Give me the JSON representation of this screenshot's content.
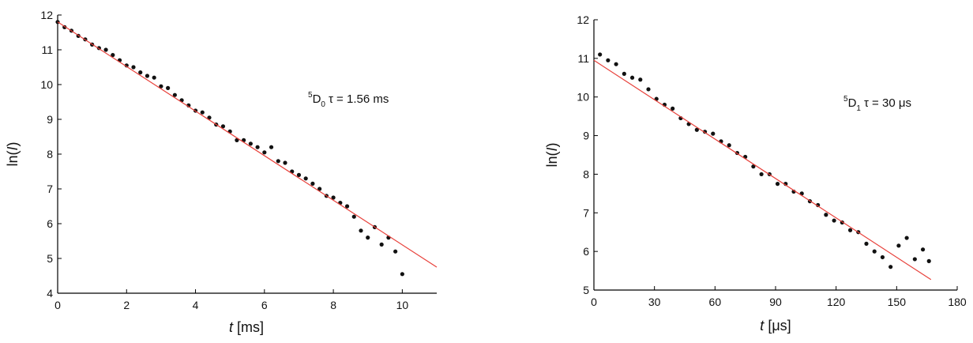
{
  "chart_data": [
    {
      "type": "scatter",
      "x_label": {
        "italic": "t",
        "text": "[ms]"
      },
      "y_label": {
        "prefix": "ln(",
        "italic": "I",
        "suffix": ")"
      },
      "annotation": {
        "sup": "5",
        "main": "D",
        "sub": "0",
        "text": "τ = 1.56 ms"
      },
      "xlim": [
        0,
        11
      ],
      "xticks": [
        0,
        2,
        4,
        6,
        8,
        10
      ],
      "ylim": [
        4,
        12
      ],
      "yticks": [
        4,
        5,
        6,
        7,
        8,
        9,
        10,
        11,
        12
      ],
      "points": {
        "color": "#111111",
        "x": [
          0,
          0.2,
          0.4,
          0.6,
          0.8,
          1.0,
          1.2,
          1.4,
          1.6,
          1.8,
          2.0,
          2.2,
          2.4,
          2.6,
          2.8,
          3.0,
          3.2,
          3.4,
          3.6,
          3.8,
          4.0,
          4.2,
          4.4,
          4.6,
          4.8,
          5.0,
          5.2,
          5.4,
          5.6,
          5.8,
          6.0,
          6.2,
          6.4,
          6.6,
          6.8,
          7.0,
          7.2,
          7.4,
          7.6,
          7.8,
          8.0,
          8.2,
          8.4,
          8.6,
          8.8,
          9.0,
          9.2,
          9.4,
          9.6,
          9.8,
          10.0
        ],
        "values": [
          11.8,
          11.65,
          11.55,
          11.4,
          11.3,
          11.15,
          11.05,
          11.0,
          10.85,
          10.7,
          10.55,
          10.5,
          10.35,
          10.25,
          10.2,
          9.95,
          9.9,
          9.7,
          9.55,
          9.4,
          9.25,
          9.2,
          9.05,
          8.85,
          8.8,
          8.65,
          8.4,
          8.4,
          8.3,
          8.2,
          8.05,
          8.2,
          7.8,
          7.75,
          7.5,
          7.4,
          7.3,
          7.15,
          7.0,
          6.8,
          6.75,
          6.6,
          6.5,
          6.2,
          5.8,
          5.6,
          5.9,
          5.4,
          5.6,
          5.2,
          4.55
        ]
      },
      "fit": {
        "color": "#e8403a",
        "x": [
          0,
          11
        ],
        "values": [
          11.8,
          4.75
        ]
      }
    },
    {
      "type": "scatter",
      "x_label": {
        "italic": "t",
        "text": "[μs]"
      },
      "y_label": {
        "prefix": "ln(",
        "italic": "I",
        "suffix": ")"
      },
      "annotation": {
        "sup": "5",
        "main": "D",
        "sub": "1",
        "text": "τ = 30 μs"
      },
      "xlim": [
        0,
        180
      ],
      "xticks": [
        0,
        30,
        60,
        90,
        120,
        150,
        180
      ],
      "ylim": [
        5,
        12
      ],
      "yticks": [
        5,
        6,
        7,
        8,
        9,
        10,
        11,
        12
      ],
      "points": {
        "color": "#111111",
        "x": [
          3,
          7,
          11,
          15,
          19,
          23,
          27,
          31,
          35,
          39,
          43,
          47,
          51,
          55,
          59,
          63,
          67,
          71,
          75,
          79,
          83,
          87,
          91,
          95,
          99,
          103,
          107,
          111,
          115,
          119,
          123,
          127,
          131,
          135,
          139,
          143,
          147,
          151,
          155,
          159,
          163,
          166
        ],
        "values": [
          11.1,
          10.95,
          10.85,
          10.6,
          10.5,
          10.45,
          10.2,
          9.95,
          9.8,
          9.7,
          9.45,
          9.3,
          9.15,
          9.1,
          9.05,
          8.85,
          8.75,
          8.55,
          8.45,
          8.2,
          8.0,
          8.0,
          7.75,
          7.75,
          7.55,
          7.5,
          7.3,
          7.2,
          6.95,
          6.8,
          6.75,
          6.55,
          6.5,
          6.2,
          6.0,
          5.85,
          5.6,
          6.15,
          6.35,
          5.8,
          6.05,
          5.75
        ]
      },
      "fit": {
        "color": "#e8403a",
        "x": [
          0,
          167
        ],
        "values": [
          10.95,
          5.27
        ]
      }
    }
  ]
}
